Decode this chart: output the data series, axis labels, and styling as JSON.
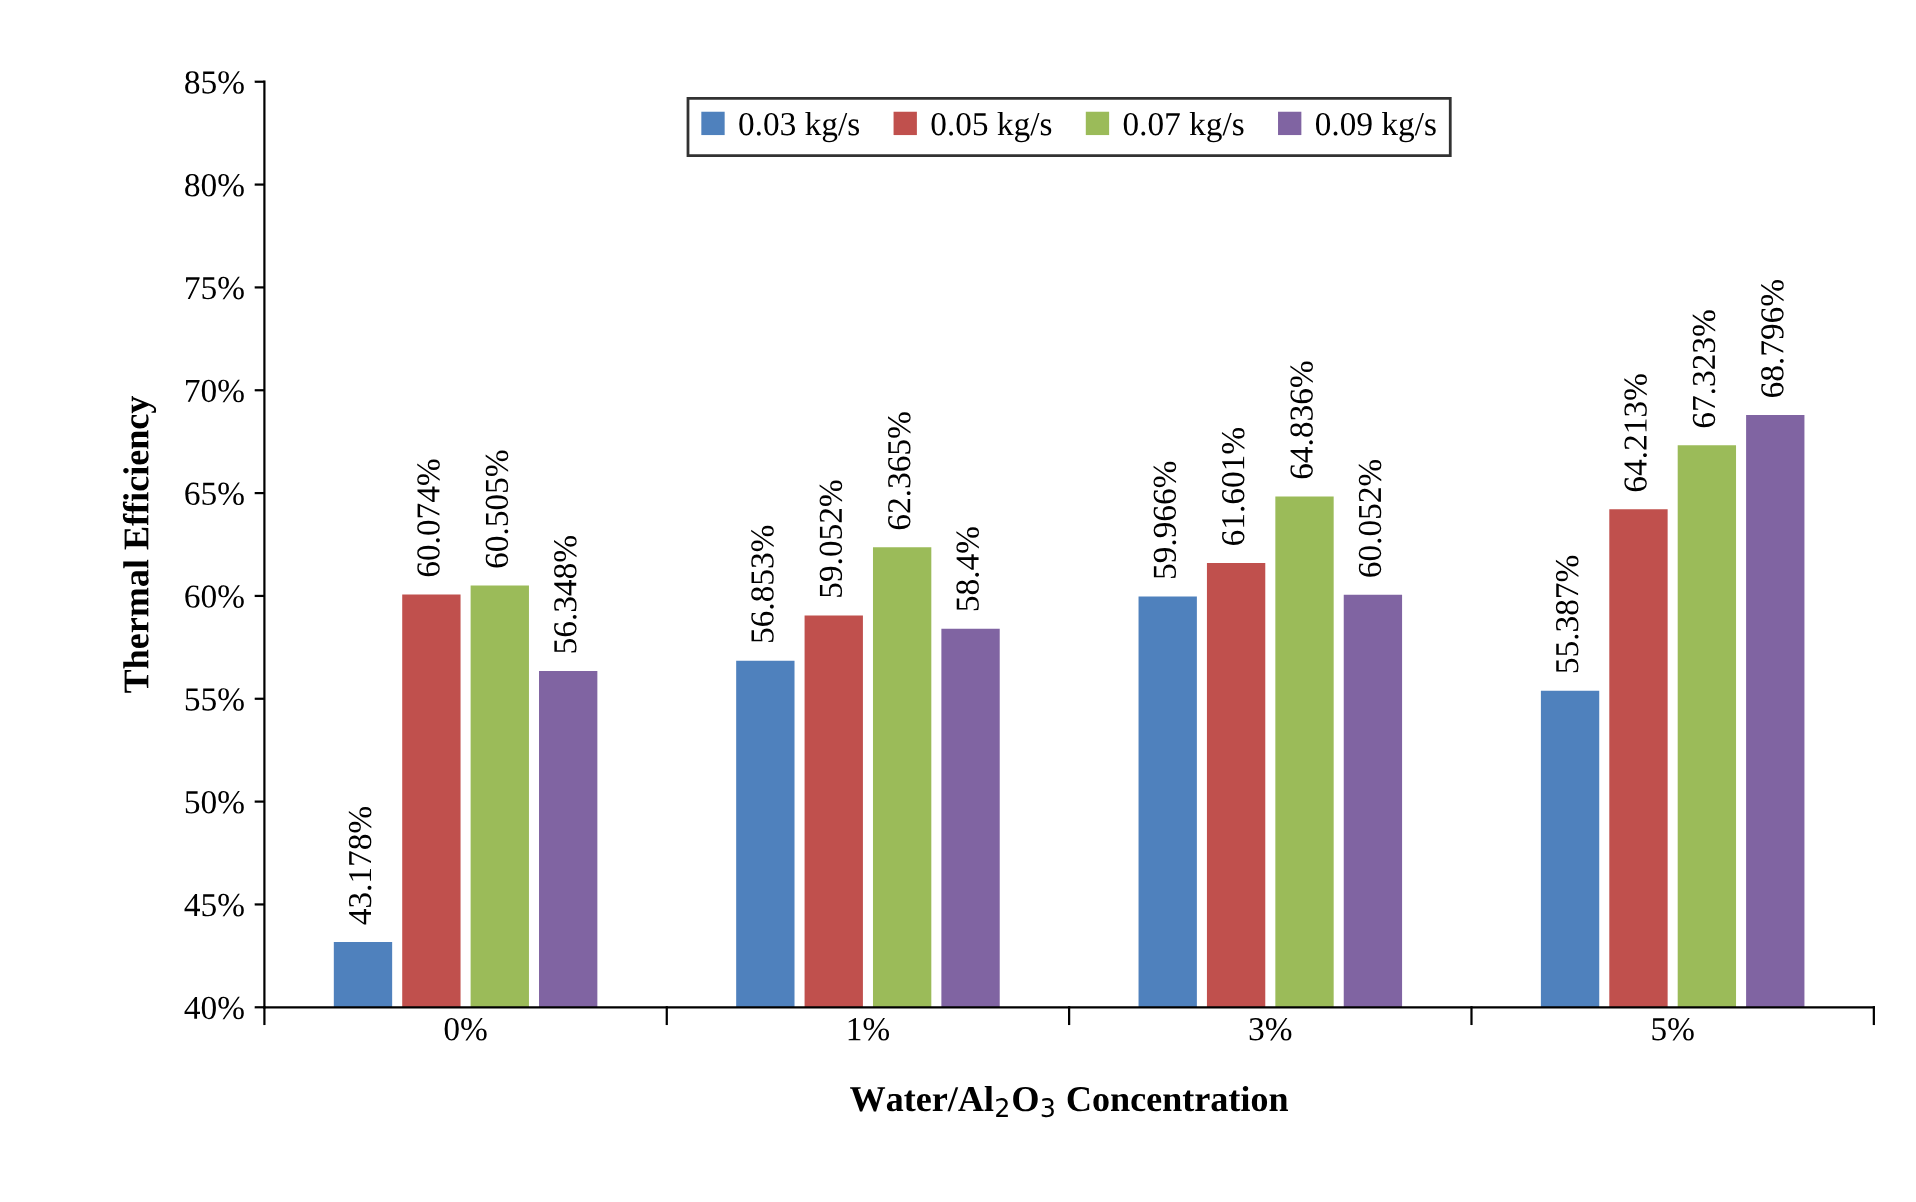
{
  "chart_data": {
    "type": "bar",
    "xlabel": "Water/Al$_{2}$O$_{3}$ Concentration",
    "ylabel": "Thermal Efficiency",
    "categories": [
      "0%",
      "1%",
      "3%",
      "5%"
    ],
    "series": [
      {
        "name": "0.03 kg/s",
        "color": "#4f81bd",
        "values": [
          43.178,
          56.853,
          59.966,
          55.387
        ],
        "value_labels": [
          "43.178%",
          "56.853%",
          "59.966%",
          "55.387%"
        ]
      },
      {
        "name": "0.05 kg/s",
        "color": "#c0504d",
        "values": [
          60.074,
          59.052,
          61.601,
          64.213
        ],
        "value_labels": [
          "60.074%",
          "59.052%",
          "61.601%",
          "64.213%"
        ]
      },
      {
        "name": "0.07 kg/s",
        "color": "#9bbb59",
        "values": [
          60.505,
          62.365,
          64.836,
          67.323
        ],
        "value_labels": [
          "60.505%",
          "62.365%",
          "64.836%",
          "67.323%"
        ]
      },
      {
        "name": "0.09 kg/s",
        "color": "#8064a2",
        "values": [
          56.348,
          58.4,
          60.052,
          68.796
        ],
        "value_labels": [
          "56.348%",
          "58.4%",
          "60.052%",
          "68.796%"
        ]
      }
    ],
    "ylim": [
      40,
      85
    ],
    "yticks": [
      {
        "value": 40,
        "label": "40%"
      },
      {
        "value": 45,
        "label": "45%"
      },
      {
        "value": 50,
        "label": "50%"
      },
      {
        "value": 55,
        "label": "55%"
      },
      {
        "value": 60,
        "label": "60%"
      },
      {
        "value": 65,
        "label": "65%"
      },
      {
        "value": 70,
        "label": "70%"
      },
      {
        "value": 75,
        "label": "75%"
      },
      {
        "value": 80,
        "label": "80%"
      },
      {
        "value": 85,
        "label": "85%"
      }
    ],
    "grid": false,
    "legend": "top"
  }
}
